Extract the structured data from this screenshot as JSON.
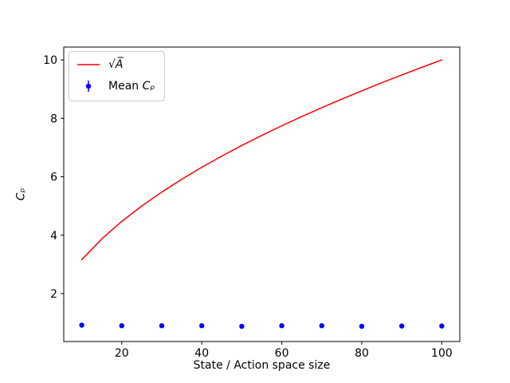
{
  "figure": {
    "background": "#ffffff",
    "spine_color": "#000000",
    "tick_color": "#000000",
    "text_color": "#000000"
  },
  "axes": {
    "xlabel": "State / Action space size",
    "ylabel": "Cₚ"
  },
  "legend": {
    "position": "upper left",
    "entries": [
      {
        "kind": "line",
        "label": "√A̅"
      },
      {
        "kind": "errorbar-point",
        "label_prefix": "Mean ",
        "label_symbol": "Cₚ"
      }
    ]
  },
  "chart_data": {
    "type": "line",
    "title": "",
    "xlabel": "State / Action space size",
    "ylabel": "C_p",
    "xlim": [
      5.5,
      104.5
    ],
    "ylim": [
      0.36,
      10.44
    ],
    "xticks": [
      20,
      40,
      60,
      80,
      100
    ],
    "yticks": [
      2,
      4,
      6,
      8,
      10
    ],
    "grid": false,
    "legend_position": "upper left",
    "series": [
      {
        "name": "sqrt(A)",
        "display_label": "√A̅",
        "type": "line",
        "color": "#ff0000",
        "linewidth": 1.5,
        "x": [
          10,
          15,
          20,
          25,
          30,
          35,
          40,
          45,
          50,
          55,
          60,
          65,
          70,
          75,
          80,
          85,
          90,
          95,
          100
        ],
        "y": [
          3.162,
          3.873,
          4.472,
          5.0,
          5.477,
          5.916,
          6.325,
          6.708,
          7.071,
          7.416,
          7.746,
          8.062,
          8.367,
          8.66,
          8.944,
          9.22,
          9.487,
          9.747,
          10.0
        ]
      },
      {
        "name": "Mean C_p",
        "display_label": "Mean Cₚ",
        "type": "scatter",
        "marker": "circle",
        "color": "#0000ff",
        "marker_radius": 3.2,
        "x": [
          10,
          20,
          30,
          40,
          50,
          60,
          70,
          80,
          90,
          100
        ],
        "y": [
          0.92,
          0.9,
          0.9,
          0.9,
          0.88,
          0.9,
          0.9,
          0.88,
          0.89,
          0.89
        ],
        "yerr": [
          0.05,
          0.05,
          0.05,
          0.05,
          0.05,
          0.05,
          0.05,
          0.05,
          0.05,
          0.05
        ]
      }
    ]
  }
}
